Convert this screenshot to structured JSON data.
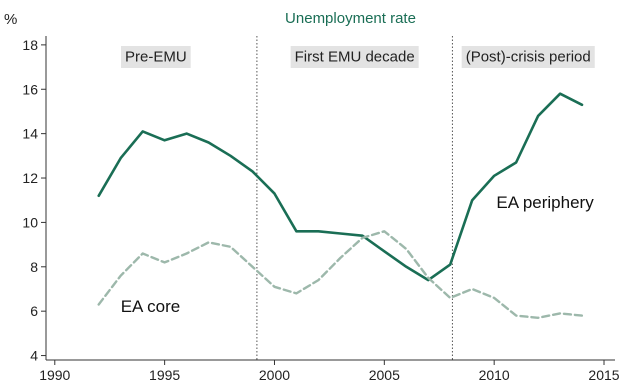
{
  "chart_data": {
    "type": "line",
    "title": "Unemployment rate",
    "ylabel": "%",
    "xlabel": "",
    "xlim": [
      1989.6,
      2015.5
    ],
    "ylim": [
      3.8,
      18.4
    ],
    "x_ticks": [
      1990,
      1995,
      2000,
      2005,
      2010,
      2015
    ],
    "y_ticks": [
      4,
      6,
      8,
      10,
      12,
      14,
      16,
      18
    ],
    "grid": false,
    "legend": "inline labels",
    "periods": [
      {
        "label": "Pre-EMU",
        "start": 1990,
        "end": 1999.2
      },
      {
        "label": "First EMU decade",
        "start": 1999.2,
        "end": 2008.1
      },
      {
        "label": "(Post)-crisis period",
        "start": 2008.1,
        "end": 2015
      }
    ],
    "dividers": [
      1999.2,
      2008.1
    ],
    "series": [
      {
        "name": "EA periphery",
        "color": "#1a6e55",
        "style": "solid",
        "x": [
          1992,
          1993,
          1994,
          1995,
          1996,
          1997,
          1998,
          1999,
          2000,
          2001,
          2002,
          2003,
          2004,
          2005,
          2006,
          2007,
          2008,
          2009,
          2010,
          2011,
          2012,
          2013,
          2014
        ],
        "values": [
          11.2,
          12.9,
          14.1,
          13.7,
          14.0,
          13.6,
          13.0,
          12.3,
          11.3,
          9.6,
          9.6,
          9.5,
          9.4,
          8.7,
          8.0,
          7.4,
          8.1,
          11.0,
          12.1,
          12.7,
          14.8,
          15.8,
          15.3
        ]
      },
      {
        "name": "EA core",
        "color": "#9db8ab",
        "style": "dashed",
        "x": [
          1992,
          1993,
          1994,
          1995,
          1996,
          1997,
          1998,
          1999,
          2000,
          2001,
          2002,
          2003,
          2004,
          2005,
          2006,
          2007,
          2008,
          2009,
          2010,
          2011,
          2012,
          2013,
          2014
        ],
        "values": [
          6.3,
          7.6,
          8.6,
          8.2,
          8.6,
          9.1,
          8.9,
          8.0,
          7.1,
          6.8,
          7.4,
          8.4,
          9.3,
          9.6,
          8.8,
          7.5,
          6.6,
          7.0,
          6.6,
          5.8,
          5.7,
          5.9,
          5.8
        ]
      }
    ],
    "series_labels": [
      {
        "text": "EA periphery",
        "x": 2010.1,
        "y": 10.9
      },
      {
        "text": "EA core",
        "x": 1993.0,
        "y": 6.2
      }
    ]
  }
}
